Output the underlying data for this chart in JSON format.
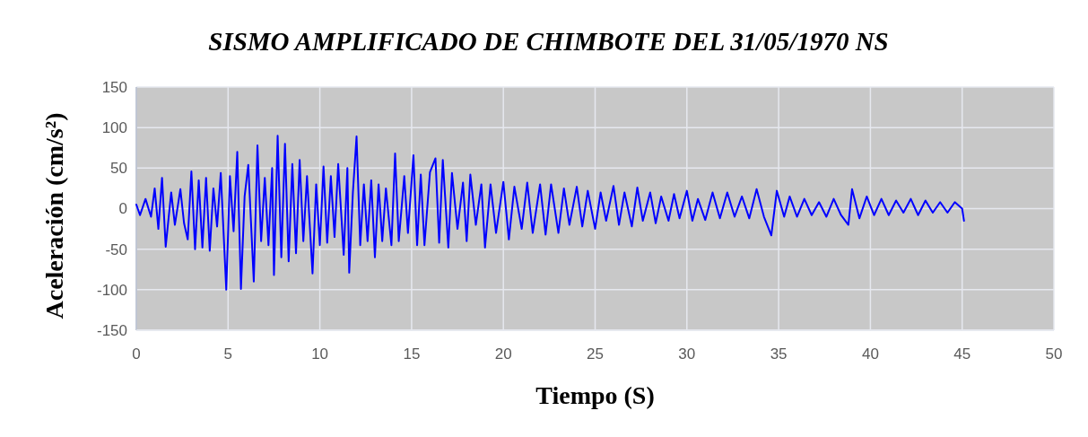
{
  "chart_data": {
    "type": "line",
    "title": "SISMO AMPLIFICADO DE CHIMBOTE DEL 31/05/1970 NS",
    "xlabel": "Tiempo (S)",
    "ylabel": "Aceleración (cm/s²)",
    "xlim": [
      0,
      50
    ],
    "xticks": [
      0,
      5,
      10,
      15,
      20,
      25,
      30,
      35,
      40,
      45,
      50
    ],
    "ylim": [
      -150,
      150
    ],
    "yticks": [
      -150,
      -100,
      -50,
      0,
      50,
      100,
      150
    ],
    "grid": true,
    "marker": "none",
    "line_style": "solid",
    "series": [
      {
        "color": "#0000ff",
        "x": [
          0,
          0.2,
          0.5,
          0.8,
          1.0,
          1.2,
          1.4,
          1.6,
          1.9,
          2.1,
          2.4,
          2.6,
          2.8,
          3.0,
          3.2,
          3.4,
          3.6,
          3.8,
          4.0,
          4.2,
          4.4,
          4.6,
          4.9,
          5.1,
          5.3,
          5.5,
          5.7,
          5.9,
          6.1,
          6.4,
          6.6,
          6.8,
          7.0,
          7.2,
          7.4,
          7.5,
          7.7,
          7.9,
          8.1,
          8.3,
          8.5,
          8.7,
          8.9,
          9.1,
          9.3,
          9.6,
          9.8,
          10.0,
          10.2,
          10.4,
          10.6,
          10.8,
          11.0,
          11.3,
          11.5,
          11.6,
          11.8,
          12.0,
          12.2,
          12.4,
          12.6,
          12.8,
          13.0,
          13.2,
          13.4,
          13.6,
          13.9,
          14.1,
          14.3,
          14.6,
          14.8,
          15.1,
          15.3,
          15.5,
          15.7,
          16.0,
          16.3,
          16.5,
          16.7,
          17.0,
          17.2,
          17.5,
          17.8,
          18.0,
          18.2,
          18.5,
          18.8,
          19.0,
          19.3,
          19.6,
          20.0,
          20.3,
          20.6,
          21.0,
          21.3,
          21.6,
          22.0,
          22.3,
          22.6,
          23.0,
          23.3,
          23.6,
          24.0,
          24.3,
          24.6,
          25.0,
          25.3,
          25.6,
          26.0,
          26.3,
          26.6,
          27.0,
          27.3,
          27.6,
          28.0,
          28.3,
          28.6,
          29.0,
          29.3,
          29.6,
          30.0,
          30.3,
          30.6,
          31.0,
          31.4,
          31.8,
          32.2,
          32.6,
          33.0,
          33.4,
          33.8,
          34.2,
          34.6,
          34.9,
          35.3,
          35.6,
          36.0,
          36.4,
          36.8,
          37.2,
          37.6,
          38.0,
          38.4,
          38.8,
          39.0,
          39.4,
          39.8,
          40.2,
          40.6,
          41.0,
          41.4,
          41.8,
          42.2,
          42.6,
          43.0,
          43.4,
          43.8,
          44.2,
          44.6,
          45.0,
          45.1
        ],
        "values": [
          5,
          -8,
          12,
          -10,
          25,
          -25,
          38,
          -47,
          20,
          -20,
          24,
          -18,
          -38,
          46,
          -50,
          35,
          -48,
          38,
          -52,
          25,
          -22,
          44,
          -100,
          40,
          -28,
          70,
          -99,
          15,
          54,
          -90,
          78,
          -40,
          38,
          -45,
          50,
          -82,
          90,
          -60,
          80,
          -65,
          55,
          -55,
          60,
          -40,
          40,
          -80,
          30,
          -45,
          52,
          -42,
          40,
          -35,
          55,
          -57,
          50,
          -79,
          20,
          89,
          -45,
          30,
          -40,
          35,
          -60,
          30,
          -40,
          25,
          -45,
          68,
          -40,
          40,
          -30,
          66,
          -45,
          42,
          -45,
          45,
          62,
          -42,
          60,
          -48,
          44,
          -25,
          32,
          -40,
          42,
          -20,
          30,
          -48,
          30,
          -30,
          33,
          -38,
          27,
          -25,
          32,
          -30,
          30,
          -32,
          30,
          -30,
          25,
          -20,
          27,
          -22,
          22,
          -25,
          20,
          -15,
          28,
          -20,
          20,
          -22,
          26,
          -15,
          20,
          -18,
          15,
          -15,
          18,
          -12,
          22,
          -15,
          12,
          -14,
          20,
          -12,
          20,
          -10,
          15,
          -12,
          24,
          -10,
          -33,
          22,
          -10,
          15,
          -10,
          12,
          -8,
          8,
          -10,
          12,
          -8,
          -20,
          24,
          -12,
          15,
          -8,
          12,
          -8,
          10,
          -5,
          12,
          -8,
          10,
          -5,
          8,
          -5,
          8,
          0,
          -15
        ]
      }
    ]
  }
}
